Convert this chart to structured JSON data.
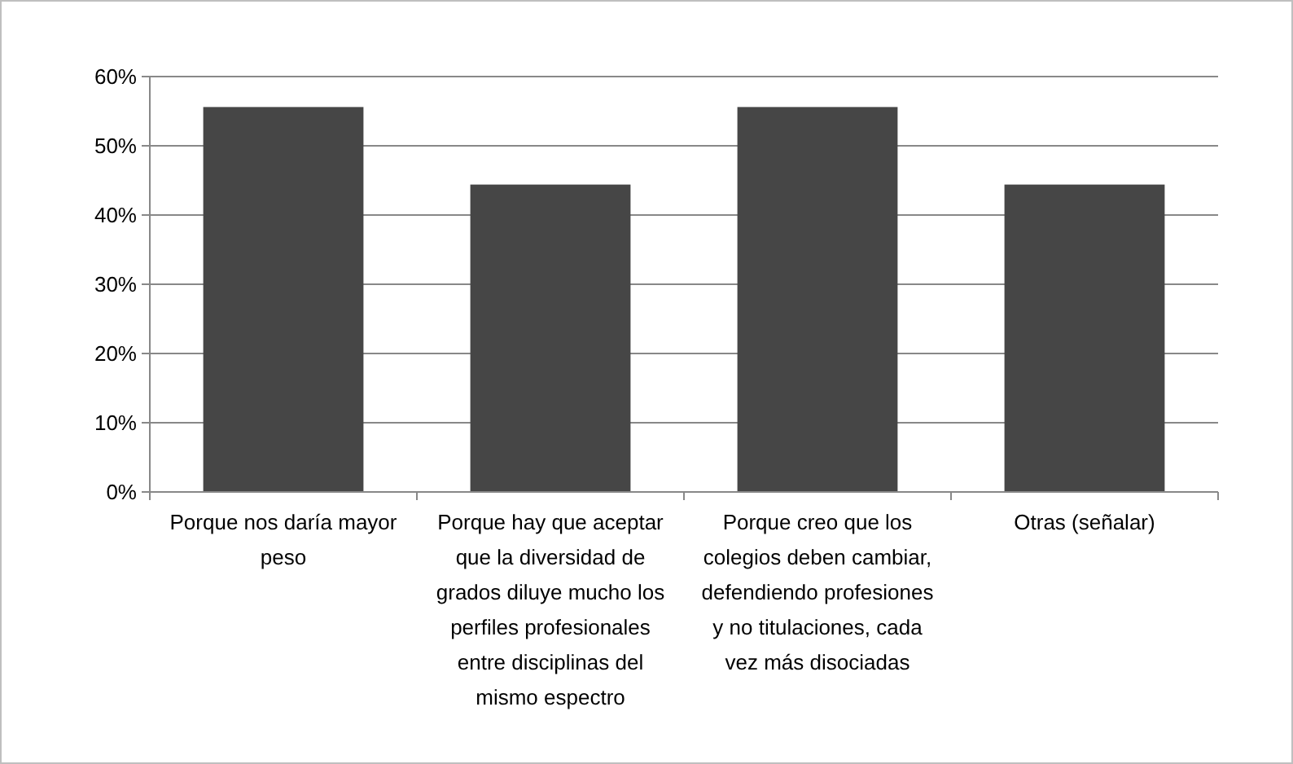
{
  "chart_data": {
    "type": "bar",
    "categories": [
      "Porque nos daría mayor peso",
      "Porque hay que aceptar que la diversidad de grados diluye mucho los perfiles profesionales entre disciplinas del mismo espectro",
      "Porque creo que los colegios deben cambiar, defendiendo profesiones y no titulaciones, cada vez más disociadas",
      "Otras (señalar)"
    ],
    "values": [
      55.6,
      44.4,
      55.6,
      44.4
    ],
    "color": "#464646",
    "ylim": [
      0,
      60
    ],
    "yticks": [
      {
        "value": 0,
        "label": "0%"
      },
      {
        "value": 10,
        "label": "10%"
      },
      {
        "value": 20,
        "label": "20%"
      },
      {
        "value": 30,
        "label": "30%"
      },
      {
        "value": 40,
        "label": "40%"
      },
      {
        "value": 50,
        "label": "50%"
      },
      {
        "value": 60,
        "label": "60%"
      }
    ],
    "grid": "y"
  }
}
